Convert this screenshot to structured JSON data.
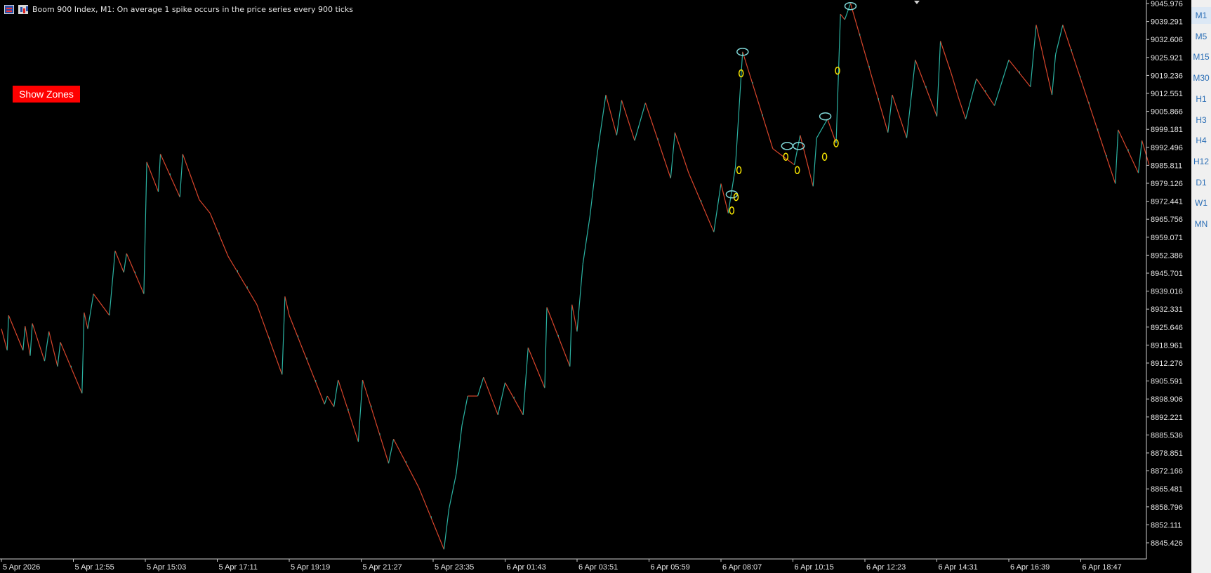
{
  "title": {
    "symbol_text": "Boom 900 Index, M1:  On average 1 spike occurs in the price series every 900 ticks",
    "icons": [
      "chart-list-icon",
      "indicator-icon"
    ]
  },
  "button": {
    "label": "Show Zones",
    "color": "#ff0000"
  },
  "timeframes": {
    "items": [
      "M1",
      "M5",
      "M15",
      "M30",
      "H1",
      "H3",
      "H4",
      "H12",
      "D1",
      "W1",
      "MN"
    ],
    "active": "M1"
  },
  "colors": {
    "background": "#000000",
    "down_line": "#d9452b",
    "up_line": "#2bb3a3",
    "spike_marker": "#7fd6d6",
    "base_marker": "#f5e400",
    "axis_text": "#e6e6e6"
  },
  "chart_data": {
    "type": "line",
    "series_label": "Boom 900 Index, M1",
    "price_axis": [
      "9045.976",
      "9039.291",
      "9032.606",
      "9025.921",
      "9019.236",
      "9012.551",
      "9005.866",
      "8999.181",
      "8992.496",
      "8985.811",
      "8979.126",
      "8972.441",
      "8965.756",
      "8959.071",
      "8952.386",
      "8945.701",
      "8939.016",
      "8932.331",
      "8925.646",
      "8918.961",
      "8912.276",
      "8905.591",
      "8898.906",
      "8892.221",
      "8885.536",
      "8878.851",
      "8872.166",
      "8865.481",
      "8858.796",
      "8852.111",
      "8845.426"
    ],
    "ylim": [
      8842.0,
      9047.2
    ],
    "time_axis": [
      "5 Apr 2026",
      "5 Apr 12:55",
      "5 Apr 15:03",
      "5 Apr 17:11",
      "5 Apr 19:19",
      "5 Apr 21:27",
      "5 Apr 23:35",
      "6 Apr 01:43",
      "6 Apr 03:51",
      "6 Apr 05:59",
      "6 Apr 08:07",
      "6 Apr 10:15",
      "6 Apr 12:23",
      "6 Apr 14:31",
      "6 Apr 16:39",
      "6 Apr 18:47"
    ],
    "x_index_range": [
      0,
      16
    ],
    "points": [
      [
        0.0,
        8925
      ],
      [
        0.08,
        8917
      ],
      [
        0.1,
        8930
      ],
      [
        0.3,
        8917
      ],
      [
        0.33,
        8926
      ],
      [
        0.4,
        8915
      ],
      [
        0.43,
        8927
      ],
      [
        0.6,
        8913
      ],
      [
        0.66,
        8924
      ],
      [
        0.78,
        8911
      ],
      [
        0.82,
        8920
      ],
      [
        1.12,
        8901
      ],
      [
        1.15,
        8931
      ],
      [
        1.2,
        8925
      ],
      [
        1.28,
        8938
      ],
      [
        1.5,
        8930
      ],
      [
        1.58,
        8954
      ],
      [
        1.7,
        8946
      ],
      [
        1.74,
        8953
      ],
      [
        1.98,
        8938
      ],
      [
        2.02,
        8987
      ],
      [
        2.18,
        8976
      ],
      [
        2.21,
        8990
      ],
      [
        2.48,
        8974
      ],
      [
        2.52,
        8990
      ],
      [
        2.75,
        8973
      ],
      [
        2.9,
        8968
      ],
      [
        3.15,
        8952
      ],
      [
        3.55,
        8934
      ],
      [
        3.9,
        8908
      ],
      [
        3.94,
        8937
      ],
      [
        4.0,
        8930
      ],
      [
        4.49,
        8897
      ],
      [
        4.53,
        8900
      ],
      [
        4.62,
        8896
      ],
      [
        4.68,
        8906
      ],
      [
        4.96,
        8883
      ],
      [
        5.02,
        8906
      ],
      [
        5.38,
        8875
      ],
      [
        5.45,
        8884
      ],
      [
        5.8,
        8866
      ],
      [
        6.15,
        8843
      ],
      [
        6.22,
        8858
      ],
      [
        6.32,
        8871
      ],
      [
        6.4,
        8889
      ],
      [
        6.48,
        8900
      ],
      [
        6.62,
        8900
      ],
      [
        6.7,
        8907
      ],
      [
        6.9,
        8893
      ],
      [
        7.0,
        8905
      ],
      [
        7.25,
        8893
      ],
      [
        7.32,
        8918
      ],
      [
        7.55,
        8903
      ],
      [
        7.58,
        8933
      ],
      [
        7.9,
        8911
      ],
      [
        7.93,
        8934
      ],
      [
        8.0,
        8924
      ],
      [
        8.08,
        8949
      ],
      [
        8.18,
        8967
      ],
      [
        8.28,
        8990
      ],
      [
        8.4,
        9012
      ],
      [
        8.55,
        8997
      ],
      [
        8.62,
        9010
      ],
      [
        8.8,
        8995
      ],
      [
        8.95,
        9009
      ],
      [
        9.3,
        8981
      ],
      [
        9.36,
        8998
      ],
      [
        9.55,
        8983
      ],
      [
        9.9,
        8961
      ],
      [
        10.0,
        8979
      ],
      [
        10.1,
        8968
      ],
      [
        10.2,
        8985
      ],
      [
        10.3,
        9028
      ],
      [
        10.72,
        8992
      ],
      [
        10.82,
        8990
      ],
      [
        11.02,
        8986
      ],
      [
        11.1,
        8997
      ],
      [
        11.28,
        8978
      ],
      [
        11.33,
        8996
      ],
      [
        11.48,
        9003
      ],
      [
        11.6,
        8994
      ],
      [
        11.66,
        9042
      ],
      [
        11.72,
        9040
      ],
      [
        11.8,
        9046
      ],
      [
        12.32,
        8998
      ],
      [
        12.38,
        9012
      ],
      [
        12.58,
        8996
      ],
      [
        12.7,
        9025
      ],
      [
        13.0,
        9004
      ],
      [
        13.05,
        9032
      ],
      [
        13.2,
        9020
      ],
      [
        13.3,
        9011
      ],
      [
        13.4,
        9003
      ],
      [
        13.55,
        9018
      ],
      [
        13.8,
        9008
      ],
      [
        14.0,
        9025
      ],
      [
        14.3,
        9015
      ],
      [
        14.38,
        9038
      ],
      [
        14.6,
        9012
      ],
      [
        14.65,
        9027
      ],
      [
        14.75,
        9038
      ],
      [
        15.48,
        8979
      ],
      [
        15.52,
        8999
      ],
      [
        15.8,
        8983
      ],
      [
        15.85,
        8995
      ],
      [
        15.95,
        8986
      ]
    ],
    "spike_markers": [
      [
        10.3,
        9028
      ],
      [
        11.8,
        9045
      ],
      [
        11.45,
        9004
      ],
      [
        10.92,
        8993
      ],
      [
        11.08,
        8993
      ],
      [
        10.15,
        8975
      ]
    ],
    "base_markers": [
      [
        10.28,
        9020
      ],
      [
        11.62,
        9021
      ],
      [
        11.6,
        8994
      ],
      [
        11.44,
        8989
      ],
      [
        10.9,
        8989
      ],
      [
        11.06,
        8984
      ],
      [
        10.25,
        8984
      ],
      [
        10.21,
        8974
      ],
      [
        10.15,
        8969
      ]
    ]
  }
}
